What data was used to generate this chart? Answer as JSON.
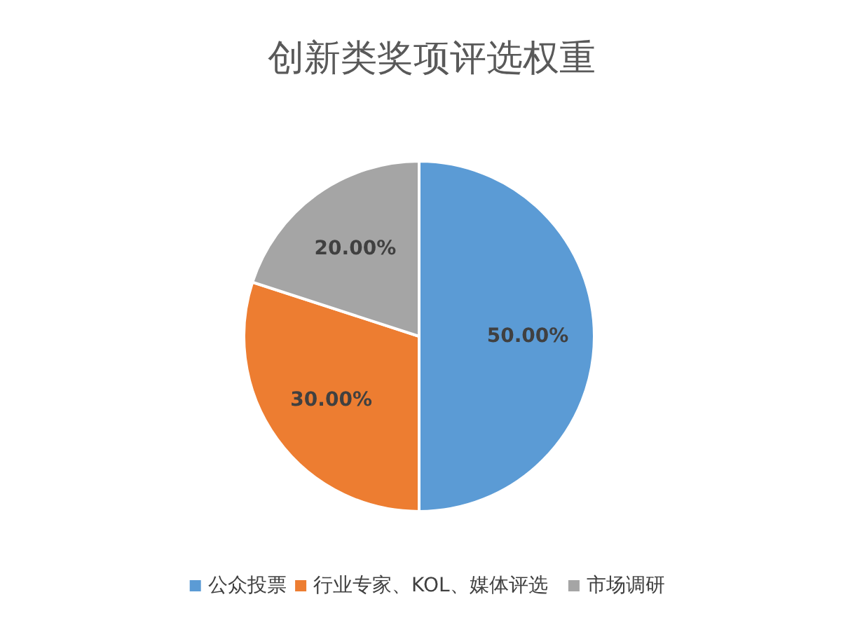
{
  "chart_data": {
    "type": "pie",
    "title": "创新类奖项评选权重",
    "categories": [
      "公众投票",
      "行业专家、KOL、媒体评选",
      "市场调研"
    ],
    "values": [
      50,
      30,
      20
    ],
    "colors": [
      "#5b9bd5",
      "#ed7d31",
      "#a5a5a5"
    ],
    "value_labels": [
      "50.00%",
      "30.00%",
      "20.00%"
    ],
    "legend": "bottom"
  }
}
